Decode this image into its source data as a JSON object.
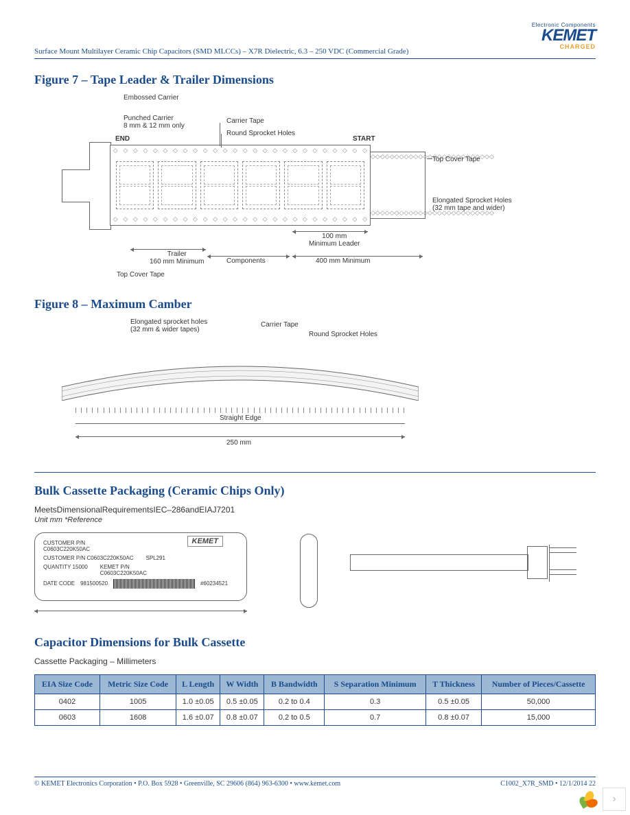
{
  "header": {
    "doc_title": "Surface Mount Multilayer Ceramic Chip Capacitors (SMD MLCCs) – X7R Dielectric, 6.3 – 250 VDC (Commercial Grade)",
    "logo_small": "Electronic Components",
    "logo_main": "KEMET",
    "logo_sub": "CHARGED"
  },
  "fig7": {
    "title": "Figure 7 – Tape Leader & Trailer Dimensions",
    "labels": {
      "embossed": "Embossed Carrier",
      "punched": "Punched Carrier\n8 mm & 12 mm only",
      "end": "END",
      "carrier_tape": "Carrier Tape",
      "round_sprocket": "Round Sprocket Holes",
      "start": "START",
      "top_cover_r": "Top Cover Tape",
      "elongated": "Elongated Sprocket Holes\n(32 mm tape and wider)",
      "top_cover_l": "Top Cover Tape",
      "trailer": "Trailer\n160 mm Minimum",
      "components": "Components",
      "leader_100": "100 mm\nMinimum Leader",
      "leader_400": "400 mm Minimum"
    }
  },
  "fig8": {
    "title": "Figure 8 – Maximum Camber",
    "labels": {
      "elongated": "Elongated sprocket holes\n(32 mm & wider tapes)",
      "carrier_tape": "Carrier Tape",
      "round_sprocket": "Round Sprocket Holes",
      "straight_edge": "Straight Edge",
      "length": "250 mm"
    }
  },
  "bulk": {
    "title": "Bulk Cassette Packaging (Ceramic Chips Only)",
    "subtitle": "MeetsDimensionalRequirementsIEC–286andEIAJ7201",
    "unit_note": "Unit mm *Reference",
    "cassette": {
      "logo": "KEMET",
      "cust_pn_label": "CUSTOMER P/N",
      "cust_pn": "C0603C220K50AC",
      "cust_pn2_label": "CUSTOMER P/N",
      "cust_pn2": "C0603C220K50AC",
      "spl": "SPL291",
      "qty_label": "QUANTITY",
      "qty": "15000",
      "kemet_pn_label": "KEMET P/N",
      "kemet_pn": "C0603C220K50AC",
      "date_label": "DATE CODE",
      "date": "981500520",
      "lot": "#60234521"
    }
  },
  "dims": {
    "title": "Capacitor Dimensions for Bulk Cassette",
    "subtitle": "Cassette Packaging – Millimeters",
    "columns": [
      "EIA Size Code",
      "Metric Size Code",
      "L Length",
      "W Width",
      "B Bandwidth",
      "S Separation Minimum",
      "T Thickness",
      "Number of Pieces/Cassette"
    ],
    "rows": [
      [
        "0402",
        "1005",
        "1.0 ±0.05",
        "0.5 ±0.05",
        "0.2 to 0.4",
        "0.3",
        "0.5 ±0.05",
        "50,000"
      ],
      [
        "0603",
        "1608",
        "1.6 ±0.07",
        "0.8 ±0.07",
        "0.2 to 0.5",
        "0.7",
        "0.8 ±0.07",
        "15,000"
      ]
    ]
  },
  "footer": {
    "left": "© KEMET Electronics Corporation • P.O. Box 5928 • Greenville, SC 29606 (864) 963-6300 • www.kemet.com",
    "right": "C1002_X7R_SMD • 12/1/2014  22"
  },
  "nav": {
    "next": "›"
  }
}
